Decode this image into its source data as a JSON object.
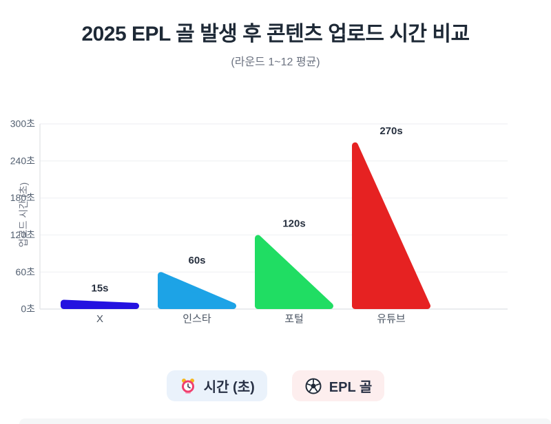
{
  "header": {
    "title": "2025 EPL 골 발생 후 콘텐츠 업로드 시간 비교",
    "subtitle": "(라운드 1~12 평균)"
  },
  "chart_data": {
    "type": "bar",
    "shape": "triangle",
    "title": "2025 EPL 골 발생 후 콘텐츠 업로드 시간 비교",
    "subtitle": "(라운드 1~12 평균)",
    "categories": [
      "X",
      "인스타",
      "포털",
      "유튜브"
    ],
    "values": [
      15,
      60,
      120,
      270
    ],
    "point_labels": [
      "15s",
      "60s",
      "120s",
      "270s"
    ],
    "bar_colors": [
      "#2412e0",
      "#1da3e6",
      "#20dd63",
      "#e62222"
    ],
    "ylabel": "업로드 시간 (초)",
    "yticks": [
      0,
      60,
      120,
      180,
      240,
      300
    ],
    "ytick_suffix": "초",
    "ylim": [
      0,
      300
    ],
    "grid": true,
    "legend_position": "bottom"
  },
  "legend": {
    "items": [
      {
        "icon": "alarm-clock-icon",
        "label": "시간 (초)",
        "bg": "#eaf2fb"
      },
      {
        "icon": "soccer-ball-icon",
        "label": "EPL 골",
        "bg": "#fdeeee"
      }
    ]
  },
  "colors": {
    "title": "#1e2936",
    "subtitle": "#6b7280",
    "tick_label": "#525f70",
    "axis_label": "#4b5563",
    "grid_line": "#f3f4f6",
    "axis_line": "#e5e7ea",
    "data_label": "#27303f"
  }
}
